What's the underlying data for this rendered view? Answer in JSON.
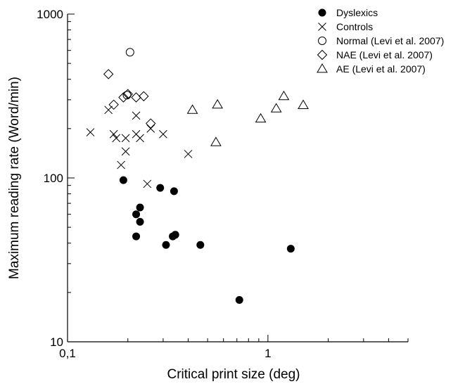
{
  "chart_data": {
    "type": "scatter",
    "xlabel": "Critical print size (deg)",
    "ylabel": "Maximum reading rate (Word/min)",
    "x_scale": "log",
    "y_scale": "log",
    "xlim": [
      0.1,
      5
    ],
    "ylim": [
      10,
      1000
    ],
    "x_ticks": [
      {
        "value": 0.1,
        "label": "0,1"
      },
      {
        "value": 1,
        "label": "1"
      }
    ],
    "y_ticks": [
      {
        "value": 10,
        "label": "10"
      },
      {
        "value": 100,
        "label": "100"
      },
      {
        "value": 1000,
        "label": "1000"
      }
    ],
    "grid": false,
    "legend_position": "top-right",
    "series": [
      {
        "name": "Dyslexics",
        "marker": "filled-circle",
        "points": [
          [
            0.19,
            97
          ],
          [
            0.22,
            60
          ],
          [
            0.23,
            66
          ],
          [
            0.23,
            54
          ],
          [
            0.22,
            44
          ],
          [
            0.29,
            87
          ],
          [
            0.34,
            83
          ],
          [
            0.31,
            39
          ],
          [
            0.335,
            44
          ],
          [
            0.345,
            45
          ],
          [
            0.46,
            39
          ],
          [
            0.72,
            18
          ],
          [
            1.3,
            37
          ]
        ]
      },
      {
        "name": "Controls",
        "marker": "cross",
        "points": [
          [
            0.13,
            190
          ],
          [
            0.16,
            260
          ],
          [
            0.17,
            185
          ],
          [
            0.175,
            175
          ],
          [
            0.185,
            120
          ],
          [
            0.195,
            175
          ],
          [
            0.195,
            145
          ],
          [
            0.22,
            240
          ],
          [
            0.22,
            185
          ],
          [
            0.23,
            175
          ],
          [
            0.25,
            92
          ],
          [
            0.26,
            200
          ],
          [
            0.3,
            185
          ],
          [
            0.4,
            140
          ]
        ]
      },
      {
        "name": "Normal (Levi et al. 2007)",
        "marker": "open-circle",
        "points": [
          [
            0.205,
            585
          ],
          [
            0.198,
            320
          ]
        ]
      },
      {
        "name": "NAE (Levi et al. 2007)",
        "marker": "open-diamond",
        "points": [
          [
            0.16,
            430
          ],
          [
            0.17,
            280
          ],
          [
            0.19,
            310
          ],
          [
            0.2,
            325
          ],
          [
            0.22,
            310
          ],
          [
            0.24,
            315
          ],
          [
            0.26,
            215
          ]
        ]
      },
      {
        "name": "AE (Levi et al. 2007)",
        "marker": "open-triangle",
        "points": [
          [
            0.42,
            260
          ],
          [
            0.56,
            280
          ],
          [
            0.55,
            165
          ],
          [
            0.92,
            230
          ],
          [
            1.1,
            265
          ],
          [
            1.2,
            315
          ],
          [
            1.5,
            278
          ]
        ]
      }
    ]
  }
}
